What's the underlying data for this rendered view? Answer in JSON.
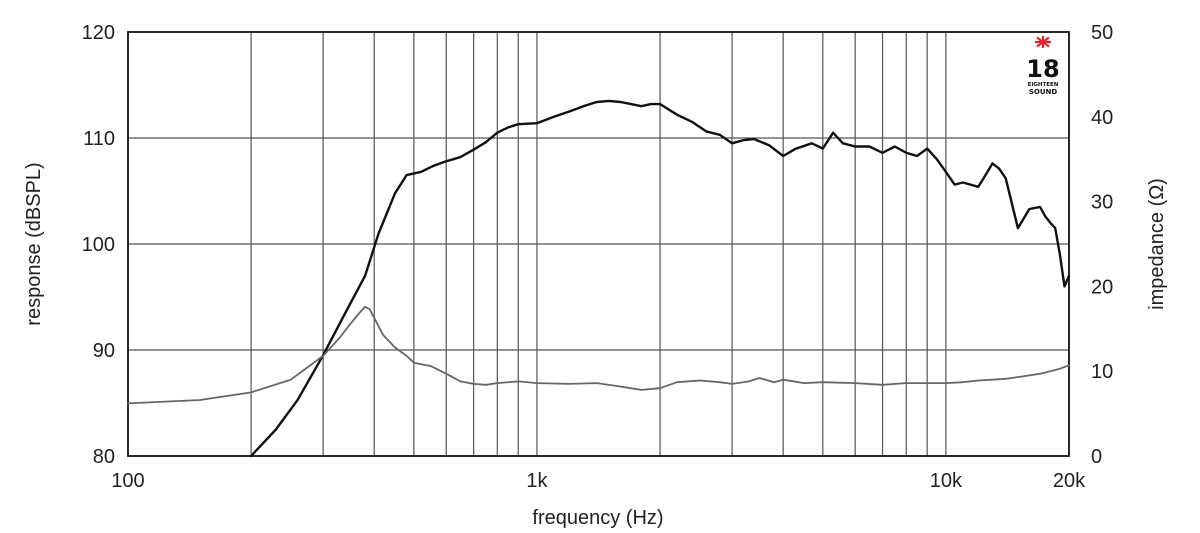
{
  "chart_data": {
    "type": "line",
    "xlabel": "frequency (Hz)",
    "ylabel": "response (dBSPL)",
    "y2label": "impedance (Ω)",
    "x_scale": "log",
    "xlim": [
      100,
      20000
    ],
    "ylim": [
      80,
      120
    ],
    "y2lim": [
      0,
      50
    ],
    "grid": true,
    "x_ticks": [
      {
        "value": 100,
        "label": "100"
      },
      {
        "value": 1000,
        "label": "1k"
      },
      {
        "value": 10000,
        "label": "10k"
      },
      {
        "value": 20000,
        "label": "20k"
      }
    ],
    "y_ticks": [
      {
        "value": 80,
        "label": "80"
      },
      {
        "value": 90,
        "label": "90"
      },
      {
        "value": 100,
        "label": "100"
      },
      {
        "value": 110,
        "label": "110"
      },
      {
        "value": 120,
        "label": "120"
      }
    ],
    "y2_ticks": [
      {
        "value": 0,
        "label": "0"
      },
      {
        "value": 10,
        "label": "10"
      },
      {
        "value": 20,
        "label": "20"
      },
      {
        "value": 30,
        "label": "30"
      },
      {
        "value": 40,
        "label": "40"
      },
      {
        "value": 50,
        "label": "50"
      }
    ],
    "series": [
      {
        "axis": "left",
        "color": "#111111",
        "x": [
          200,
          230,
          260,
          300,
          340,
          380,
          410,
          450,
          480,
          520,
          560,
          600,
          650,
          700,
          750,
          800,
          850,
          900,
          1000,
          1100,
          1200,
          1300,
          1400,
          1500,
          1600,
          1700,
          1800,
          1900,
          2000,
          2200,
          2400,
          2600,
          2800,
          3000,
          3200,
          3400,
          3700,
          4000,
          4300,
          4700,
          5000,
          5300,
          5600,
          6000,
          6500,
          7000,
          7500,
          8000,
          8500,
          9000,
          9500,
          10000,
          10500,
          11000,
          12000,
          12500,
          13000,
          13500,
          14000,
          15000,
          16000,
          17000,
          17500,
          18000,
          18500,
          19000,
          19500,
          20000
        ],
        "y": [
          80.0,
          82.5,
          85.3,
          89.5,
          93.5,
          97.0,
          101.0,
          104.8,
          106.5,
          106.8,
          107.4,
          107.8,
          108.2,
          108.9,
          109.6,
          110.5,
          111.0,
          111.3,
          111.4,
          112.0,
          112.5,
          113.0,
          113.4,
          113.5,
          113.4,
          113.2,
          113.0,
          113.2,
          113.2,
          112.2,
          111.5,
          110.6,
          110.3,
          109.5,
          109.8,
          109.9,
          109.3,
          108.3,
          109.0,
          109.5,
          109.0,
          110.5,
          109.5,
          109.2,
          109.2,
          108.6,
          109.2,
          108.6,
          108.3,
          109.0,
          108.0,
          106.8,
          105.6,
          105.8,
          105.4,
          106.5,
          107.6,
          107.1,
          106.2,
          101.5,
          103.3,
          103.5,
          102.6,
          102.0,
          101.5,
          99.0,
          96.0,
          97.0
        ]
      },
      {
        "axis": "right",
        "color": "#666666",
        "x": [
          100,
          150,
          200,
          250,
          300,
          330,
          350,
          370,
          380,
          390,
          400,
          420,
          450,
          480,
          500,
          550,
          600,
          650,
          700,
          750,
          800,
          900,
          1000,
          1200,
          1400,
          1600,
          1800,
          2000,
          2200,
          2500,
          2800,
          3000,
          3300,
          3500,
          3800,
          4000,
          4500,
          5000,
          6000,
          7000,
          8000,
          9000,
          10000,
          11000,
          12000,
          13000,
          14000,
          15000,
          16000,
          17000,
          18000,
          19000,
          20000
        ],
        "y": [
          6.2,
          6.6,
          7.5,
          9.0,
          11.8,
          14.0,
          15.6,
          17.0,
          17.6,
          17.3,
          16.3,
          14.3,
          12.8,
          11.8,
          11.0,
          10.6,
          9.7,
          8.8,
          8.5,
          8.4,
          8.6,
          8.8,
          8.6,
          8.5,
          8.6,
          8.2,
          7.8,
          8.0,
          8.7,
          8.9,
          8.7,
          8.5,
          8.8,
          9.2,
          8.7,
          9.0,
          8.6,
          8.7,
          8.6,
          8.4,
          8.6,
          8.6,
          8.6,
          8.7,
          8.9,
          9.0,
          9.1,
          9.3,
          9.5,
          9.7,
          10.0,
          10.3,
          10.7
        ]
      }
    ]
  },
  "logo": {
    "number": "18",
    "line1": "EIGHTEEN",
    "line2": "SOUND",
    "accent_color": "#e4252b"
  }
}
